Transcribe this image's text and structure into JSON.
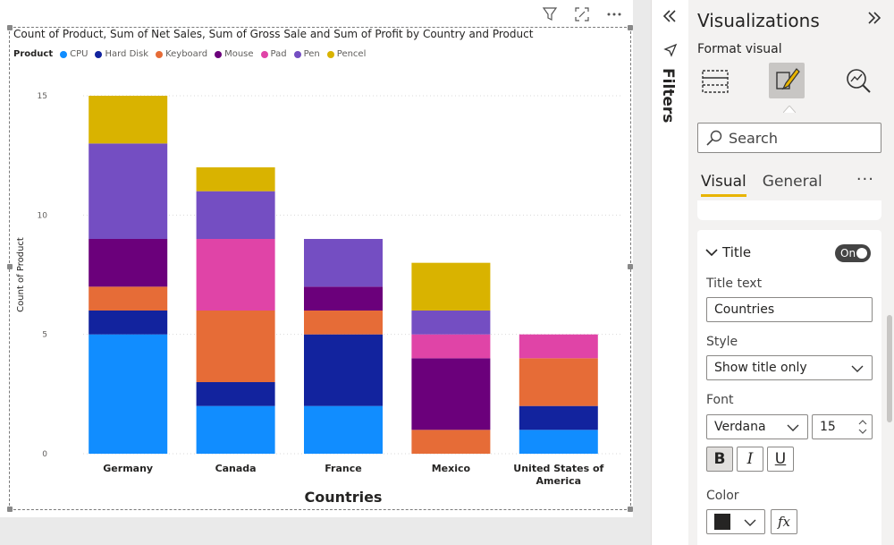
{
  "visual_header": {
    "filter_icon": "filter-icon",
    "focus_icon": "focus-mode-icon",
    "more_icon": "more-options-icon"
  },
  "chart_title": "Count of Product, Sum of Net Sales, Sum of Gross Sale and Sum of Profit by Country and Product",
  "chart_data": {
    "type": "bar",
    "stacked": true,
    "categories": [
      "Germany",
      "Canada",
      "France",
      "Mexico",
      "United States of America"
    ],
    "xlabel": "Countries",
    "ylabel": "Count of Product",
    "ylim": [
      0,
      15
    ],
    "yticks": [
      0,
      5,
      10,
      15
    ],
    "legend_title": "Product",
    "legend_placement": "top-left",
    "grid": true,
    "series": [
      {
        "name": "CPU",
        "color": "#118DFF",
        "values": [
          5,
          2,
          2,
          0,
          1
        ]
      },
      {
        "name": "Hard Disk",
        "color": "#12239E",
        "values": [
          1,
          1,
          3,
          0,
          1
        ]
      },
      {
        "name": "Keyboard",
        "color": "#E66C37",
        "values": [
          1,
          3,
          1,
          1,
          2
        ]
      },
      {
        "name": "Mouse",
        "color": "#6B007B",
        "values": [
          2,
          0,
          1,
          3,
          0
        ]
      },
      {
        "name": "Pad",
        "color": "#E044A7",
        "values": [
          0,
          3,
          0,
          1,
          1
        ]
      },
      {
        "name": "Pen",
        "color": "#744EC2",
        "values": [
          4,
          2,
          2,
          1,
          0
        ]
      },
      {
        "name": "Pencel",
        "color": "#D9B300",
        "values": [
          2,
          1,
          0,
          2,
          0
        ]
      }
    ]
  },
  "filters_pane": {
    "collapse_icon": "double-chevron-left-icon",
    "label": "Filters"
  },
  "viz_pane": {
    "title": "Visualizations",
    "expand_icon": "double-chevron-right-icon",
    "format_label": "Format visual",
    "search_placeholder": "Search",
    "tabs": [
      "Visual",
      "General"
    ],
    "more": "···",
    "title_section": {
      "label": "Title",
      "toggle": "On",
      "title_text_label": "Title text",
      "title_text_value": "Countries",
      "style_label": "Style",
      "style_value": "Show title only",
      "font_label": "Font",
      "font_value": "Verdana",
      "font_size": "15",
      "bold": "B",
      "italic": "I",
      "underline": "U",
      "color_label": "Color",
      "color_value": "#252423",
      "fx": "fx"
    }
  }
}
